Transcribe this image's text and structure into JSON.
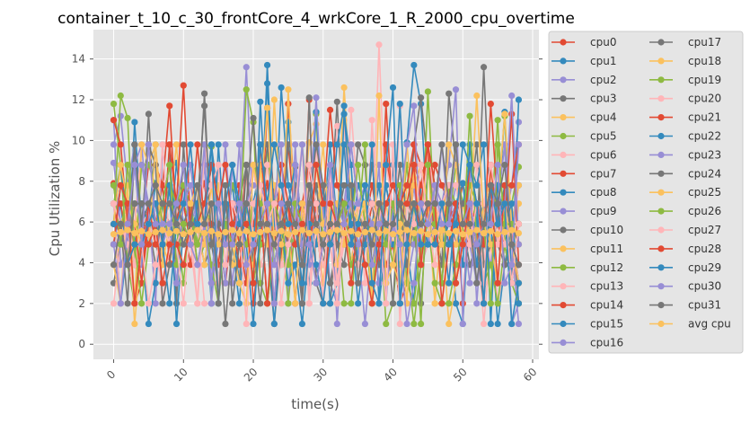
{
  "chart_data": {
    "type": "line",
    "title": "container_t_10_c_30_frontCore_4_wrkCore_1_R_2000_cpu_overtime",
    "xlabel": "time(s)",
    "ylabel": "Cpu Utilization %",
    "xlim": [
      -2.9,
      60.9
    ],
    "ylim": [
      -0.74,
      15.44
    ],
    "xticks": [
      0,
      10,
      20,
      30,
      40,
      50,
      60
    ],
    "yticks": [
      0,
      2,
      4,
      6,
      8,
      10,
      12,
      14
    ],
    "xtick_rotation": 45,
    "grid": true,
    "legend": {
      "position": "outside-right",
      "columns": 2
    },
    "x": [
      0,
      1,
      2,
      3,
      4,
      5,
      6,
      7,
      8,
      9,
      10,
      11,
      12,
      13,
      14,
      15,
      16,
      17,
      18,
      19,
      20,
      21,
      22,
      23,
      24,
      25,
      26,
      27,
      28,
      29,
      30,
      31,
      32,
      33,
      34,
      35,
      36,
      37,
      38,
      39,
      40,
      41,
      42,
      43,
      44,
      45,
      46,
      47,
      48,
      49,
      50,
      51,
      52,
      53,
      54,
      55,
      56,
      57,
      58
    ],
    "series": [
      {
        "name": "cpu0",
        "color": "#E24A33",
        "values": [
          7.9,
          5.9,
          6.9,
          5.9,
          4.9,
          6.9,
          5.9,
          7.8,
          4.0,
          6.9,
          5.9,
          3.9,
          6.9,
          7.9,
          4.9,
          5.9,
          6.8,
          4.9,
          7.8,
          5.9,
          6.9,
          5.0,
          7.9,
          5.9,
          3.9,
          11.8,
          6.9,
          5.9,
          4.9,
          6.9,
          5.9,
          7.8,
          4.9,
          5.9,
          6.9,
          4.0,
          6.9,
          5.9,
          3.9,
          11.8,
          5.9,
          6.9,
          4.9,
          7.8,
          5.9,
          6.9,
          5.9,
          3.9,
          6.9,
          5.9,
          7.9,
          5.9,
          4.9,
          6.9,
          5.9,
          5.0,
          6.9,
          4.9,
          5.9
        ]
      },
      {
        "name": "cpu1",
        "color": "#348ABD",
        "values": [
          4.9,
          6.9,
          3.9,
          10.9,
          5.9,
          4.9,
          7.9,
          5.9,
          4.9,
          8.9,
          5.9,
          4.9,
          6.9,
          5.9,
          4.9,
          6.8,
          5.9,
          7.8,
          4.9,
          5.9,
          6.9,
          4.9,
          13.7,
          5.9,
          4.9,
          10.9,
          6.9,
          5.9,
          4.9,
          7.8,
          5.9,
          4.9,
          6.9,
          5.9,
          7.8,
          4.9,
          5.9,
          6.9,
          4.9,
          7.8,
          5.9,
          4.9,
          9.9,
          13.7,
          11.8,
          5.9,
          6.9,
          4.9,
          5.9,
          6.9,
          7.9,
          4.9,
          5.9,
          6.9,
          4.9,
          5.9,
          7.8,
          4.9,
          3.9
        ]
      },
      {
        "name": "cpu2",
        "color": "#988ED5",
        "values": [
          8.9,
          5.9,
          6.9,
          6.9,
          5.9,
          6.9,
          4.9,
          5.9,
          6.9,
          4.9,
          5.9,
          6.9,
          4.9,
          5.9,
          5.9,
          6.9,
          5.9,
          3.0,
          6.9,
          13.6,
          5.9,
          6.9,
          5.9,
          4.9,
          6.9,
          5.9,
          6.9,
          4.9,
          5.9,
          6.9,
          5.9,
          4.9,
          6.9,
          5.9,
          6.9,
          5.9,
          4.9,
          6.9,
          5.9,
          4.9,
          6.9,
          5.9,
          4.9,
          6.9,
          5.9,
          4.9,
          6.9,
          5.9,
          4.9,
          6.9,
          5.9,
          4.9,
          6.9,
          5.9,
          4.9,
          7.8,
          5.9,
          7.8,
          10.9
        ]
      },
      {
        "name": "cpu3",
        "color": "#777777",
        "values": [
          3.0,
          4.9,
          5.9,
          3.9,
          4.9,
          5.9,
          3.9,
          4.9,
          7.8,
          5.9,
          8.8,
          4.9,
          5.9,
          3.9,
          4.9,
          6.8,
          5.9,
          3.9,
          4.9,
          5.9,
          6.9,
          8.7,
          5.9,
          4.9,
          3.9,
          4.9,
          8.7,
          5.9,
          4.9,
          6.9,
          3.9,
          5.9,
          11.9,
          4.9,
          5.9,
          6.9,
          4.9,
          5.9,
          3.9,
          4.9,
          5.9,
          8.8,
          4.9,
          5.9,
          3.9,
          4.9,
          5.9,
          3.9,
          6.9,
          4.9,
          5.9,
          3.9,
          4.9,
          13.6,
          5.9,
          4.9,
          3.9,
          5.9,
          3.0
        ]
      },
      {
        "name": "cpu4",
        "color": "#FBC15E",
        "values": [
          3.9,
          5.0,
          5.9,
          6.9,
          4.0,
          5.9,
          6.9,
          4.9,
          3.9,
          5.9,
          6.9,
          4.9,
          5.9,
          3.9,
          6.9,
          4.9,
          5.9,
          6.9,
          4.9,
          3.9,
          5.9,
          6.9,
          4.9,
          5.9,
          3.9,
          6.9,
          4.9,
          5.9,
          9.9,
          10.8,
          4.9,
          5.9,
          6.9,
          4.9,
          5.9,
          3.9,
          6.9,
          4.9,
          5.9,
          6.9,
          4.9,
          3.9,
          5.9,
          6.9,
          4.9,
          5.9,
          3.9,
          6.9,
          4.9,
          5.9,
          6.9,
          4.9,
          3.9,
          5.9,
          8.8,
          4.9,
          5.9,
          3.9,
          6.9
        ]
      },
      {
        "name": "cpu5",
        "color": "#8EBA42",
        "values": [
          6.9,
          8.8,
          5.9,
          4.9,
          6.9,
          5.9,
          4.9,
          6.9,
          5.9,
          4.9,
          6.9,
          5.9,
          4.9,
          9.8,
          9.7,
          6.9,
          5.9,
          4.9,
          6.9,
          5.9,
          4.9,
          6.9,
          5.9,
          7.8,
          4.9,
          6.9,
          5.9,
          4.9,
          6.9,
          5.9,
          4.9,
          7.7,
          5.9,
          4.9,
          6.9,
          5.9,
          4.9,
          6.9,
          5.9,
          4.9,
          6.9,
          5.9,
          8.8,
          4.9,
          6.9,
          5.9,
          4.9,
          6.9,
          5.9,
          8.8,
          6.9,
          5.9,
          4.9,
          6.9,
          5.9,
          11.0,
          4.9,
          6.9,
          8.7
        ]
      },
      {
        "name": "cpu6",
        "color": "#FFB5B8",
        "values": [
          2.0,
          4.9,
          5.9,
          3.9,
          4.9,
          5.9,
          3.0,
          4.9,
          5.9,
          3.9,
          4.9,
          5.9,
          3.9,
          4.9,
          5.9,
          8.8,
          4.9,
          5.9,
          3.9,
          4.9,
          5.9,
          3.9,
          4.9,
          5.9,
          3.9,
          4.9,
          5.9,
          3.9,
          4.9,
          5.9,
          3.9,
          4.9,
          10.7,
          11.0,
          4.9,
          5.9,
          3.9,
          4.9,
          14.7,
          5.9,
          3.9,
          11.7,
          4.9,
          5.9,
          3.9,
          4.9,
          5.9,
          3.9,
          4.9,
          5.9,
          3.9,
          4.9,
          5.9,
          1.0,
          4.9,
          5.9,
          3.9,
          4.9,
          7.8
        ]
      }
    ]
  },
  "extra_series_seed_note": "",
  "legend_left": [
    "cpu0",
    "cpu1",
    "cpu2",
    "cpu3",
    "cpu4",
    "cpu5",
    "cpu6",
    "cpu7",
    "cpu8",
    "cpu9",
    "cpu10",
    "cpu11",
    "cpu12",
    "cpu13",
    "cpu14",
    "cpu15",
    "cpu16"
  ],
  "legend_right": [
    "cpu17",
    "cpu18",
    "cpu19",
    "cpu20",
    "cpu21",
    "cpu22",
    "cpu23",
    "cpu24",
    "cpu25",
    "cpu26",
    "cpu27",
    "cpu28",
    "cpu29",
    "cpu30",
    "cpu31",
    "avg cpu"
  ],
  "palette": [
    "#E24A33",
    "#348ABD",
    "#988ED5",
    "#777777",
    "#FBC15E",
    "#8EBA42",
    "#FFB5B8"
  ]
}
